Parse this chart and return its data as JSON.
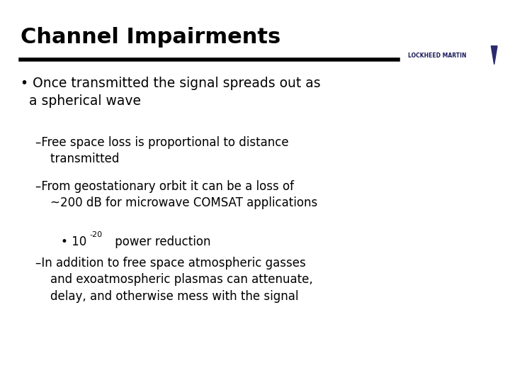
{
  "title": "Channel Impairments",
  "title_fontsize": 22,
  "title_fontweight": "bold",
  "background_color": "#ffffff",
  "text_color": "#000000",
  "header_bar_color": "#000000",
  "lockheed_text": "LOCKHEED MARTIN",
  "bullet1": "• Once transmitted the signal spreads out as\n  a spherical wave",
  "sub1": "–Free space loss is proportional to distance\n    transmitted",
  "sub2": "–From geostationary orbit it can be a loss of\n    ~200 dB for microwave COMSAT applications",
  "sub2b_prefix": "• 10",
  "sub2b_sup": "-20",
  "sub2b_suffix": " power reduction",
  "sub3": "–In addition to free space atmospheric gasses\n    and exoatmospheric plasmas can attenuate,\n    delay, and otherwise mess with the signal"
}
